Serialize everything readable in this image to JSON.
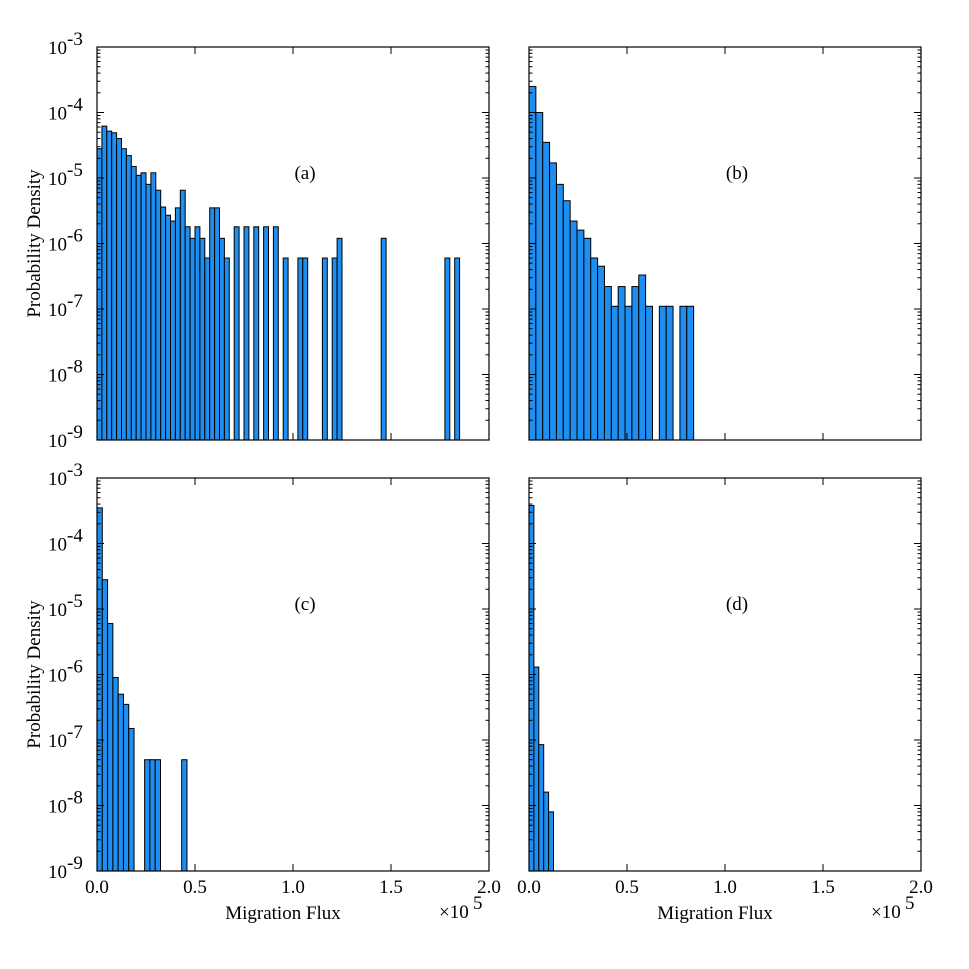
{
  "chart_data": [
    {
      "type": "bar",
      "panel": "(a)",
      "ylabel": "Probability Density",
      "xlabel": "",
      "yscale": "log",
      "ylim": [
        1e-09,
        0.001
      ],
      "xlim": [
        0,
        200000
      ],
      "bin_width": 2500,
      "bins": [
        [
          0,
          2.8e-05
        ],
        [
          2500,
          6.2e-05
        ],
        [
          5000,
          5.2e-05
        ],
        [
          7500,
          4.9e-05
        ],
        [
          10000,
          4e-05
        ],
        [
          12500,
          2.8e-05
        ],
        [
          15000,
          2.2e-05
        ],
        [
          17500,
          1.5e-05
        ],
        [
          20000,
          1.1e-05
        ],
        [
          22500,
          1.2e-05
        ],
        [
          25000,
          8e-06
        ],
        [
          27500,
          1.2e-05
        ],
        [
          30000,
          6.5e-06
        ],
        [
          32500,
          3.6e-06
        ],
        [
          35000,
          2.7e-06
        ],
        [
          37500,
          2.2e-06
        ],
        [
          40000,
          3.5e-06
        ],
        [
          42500,
          6.5e-06
        ],
        [
          45000,
          1.8e-06
        ],
        [
          47500,
          1.2e-06
        ],
        [
          50000,
          1.8e-06
        ],
        [
          52500,
          1.2e-06
        ],
        [
          55000,
          6e-07
        ],
        [
          57500,
          3.5e-06
        ],
        [
          60000,
          3.5e-06
        ],
        [
          62500,
          1.2e-06
        ],
        [
          65000,
          6e-07
        ],
        [
          70000,
          1.8e-06
        ],
        [
          75000,
          1.8e-06
        ],
        [
          80000,
          1.8e-06
        ],
        [
          85000,
          1.8e-06
        ],
        [
          90000,
          1.8e-06
        ],
        [
          95000,
          6e-07
        ],
        [
          102500,
          6e-07
        ],
        [
          105000,
          6e-07
        ],
        [
          115000,
          6e-07
        ],
        [
          120000,
          6e-07
        ],
        [
          122500,
          1.2e-06
        ],
        [
          145000,
          1.2e-06
        ],
        [
          177500,
          6e-07
        ],
        [
          182500,
          6e-07
        ]
      ]
    },
    {
      "type": "bar",
      "panel": "(b)",
      "ylabel": "",
      "xlabel": "",
      "yscale": "log",
      "ylim": [
        1e-09,
        0.001
      ],
      "xlim": [
        0,
        200000
      ],
      "bin_width": 3500,
      "bins": [
        [
          0,
          0.00025
        ],
        [
          3500,
          0.0001
        ],
        [
          7000,
          3.5e-05
        ],
        [
          10500,
          1.7e-05
        ],
        [
          14000,
          8e-06
        ],
        [
          17500,
          4.5e-06
        ],
        [
          21000,
          2.2e-06
        ],
        [
          24500,
          1.6e-06
        ],
        [
          28000,
          1.2e-06
        ],
        [
          31500,
          6e-07
        ],
        [
          35000,
          4.5e-07
        ],
        [
          38500,
          2.2e-07
        ],
        [
          42000,
          1.1e-07
        ],
        [
          45500,
          2.2e-07
        ],
        [
          49000,
          1.1e-07
        ],
        [
          52500,
          2.2e-07
        ],
        [
          56000,
          3.3e-07
        ],
        [
          59500,
          1.1e-07
        ],
        [
          66500,
          1.1e-07
        ],
        [
          70000,
          1.1e-07
        ],
        [
          77000,
          1.1e-07
        ],
        [
          80500,
          1.1e-07
        ]
      ]
    },
    {
      "type": "bar",
      "panel": "(c)",
      "ylabel": "Probability Density",
      "xlabel": "Migration Flux",
      "xaxis_multiplier": "×10",
      "xaxis_exponent": "5",
      "xticks": [
        "0.0",
        "0.5",
        "1.0",
        "1.5",
        "2.0"
      ],
      "yscale": "log",
      "ylim": [
        1e-09,
        0.001
      ],
      "xlim": [
        0,
        200000
      ],
      "bin_width": 2700,
      "bins": [
        [
          0,
          0.00035
        ],
        [
          2700,
          2.8e-05
        ],
        [
          5400,
          6e-06
        ],
        [
          8100,
          9e-07
        ],
        [
          10800,
          5e-07
        ],
        [
          13500,
          3.5e-07
        ],
        [
          16200,
          1.5e-07
        ],
        [
          24300,
          5e-08
        ],
        [
          27000,
          5e-08
        ],
        [
          29700,
          5e-08
        ],
        [
          43200,
          5e-08
        ]
      ]
    },
    {
      "type": "bar",
      "panel": "(d)",
      "ylabel": "",
      "xlabel": "Migration Flux",
      "xaxis_multiplier": "×10",
      "xaxis_exponent": "5",
      "xticks": [
        "0.0",
        "0.5",
        "1.0",
        "1.5",
        "2.0"
      ],
      "yscale": "log",
      "ylim": [
        1e-09,
        0.001
      ],
      "xlim": [
        0,
        200000
      ],
      "bin_width": 2500,
      "bins": [
        [
          0,
          0.00038
        ],
        [
          2500,
          1.3e-06
        ],
        [
          5000,
          8.5e-08
        ],
        [
          7500,
          1.6e-08
        ],
        [
          10000,
          8e-09
        ]
      ]
    }
  ],
  "ytick_exponents": [
    "-3",
    "-4",
    "-5",
    "-6",
    "-7",
    "-8",
    "-9"
  ],
  "ytick_base": "10"
}
